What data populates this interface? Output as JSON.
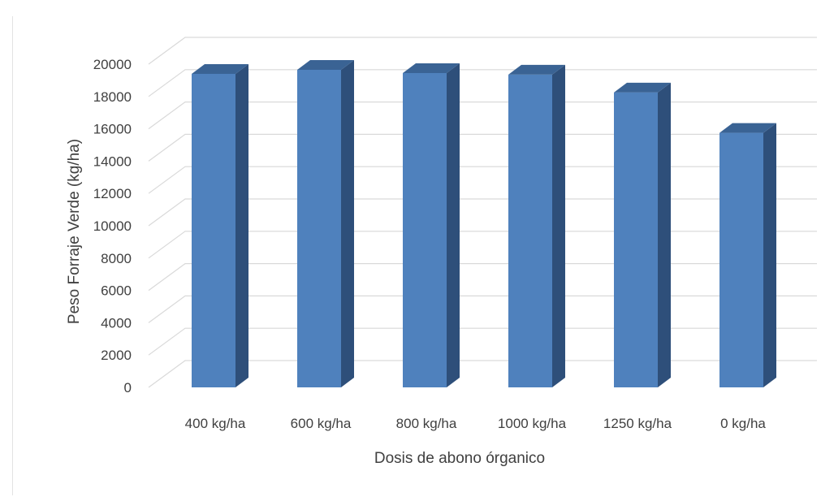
{
  "chart_data": {
    "type": "bar",
    "style": "3d-column",
    "categories": [
      "400 kg/ha",
      "600 kg/ha",
      "800 kg/ha",
      "1000 kg/ha",
      "1250 kg/ha",
      "0 kg/ha"
    ],
    "series": [
      {
        "values": [
          19400,
          19650,
          19450,
          19350,
          18250,
          15750
        ]
      }
    ],
    "xlabel": "Dosis de abono órganico",
    "ylabel": "Peso Forraje Verde  (kg/ha)",
    "ylim": [
      0,
      20000
    ],
    "yticks": [
      "0",
      "2000",
      "4000",
      "6000",
      "8000",
      "10000",
      "12000",
      "14000",
      "16000",
      "18000",
      "20000"
    ],
    "grid": true,
    "legend": "none",
    "colors": {
      "bar_front": "#4f81bd",
      "bar_side": "#2e4f7a",
      "bar_top": "#3a6394",
      "grid": "#d9d9d9"
    }
  }
}
